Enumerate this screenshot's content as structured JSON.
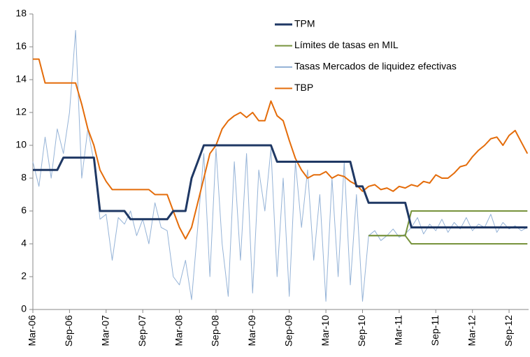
{
  "chart_data": {
    "type": "line",
    "x": [
      "Mar-06",
      "Apr-06",
      "May-06",
      "Jun-06",
      "Jul-06",
      "Aug-06",
      "Sep-06",
      "Oct-06",
      "Nov-06",
      "Dec-06",
      "Jan-07",
      "Feb-07",
      "Mar-07",
      "Apr-07",
      "May-07",
      "Jun-07",
      "Jul-07",
      "Aug-07",
      "Sep-07",
      "Oct-07",
      "Nov-07",
      "Dec-07",
      "Jan-08",
      "Feb-08",
      "Mar-08",
      "Apr-08",
      "May-08",
      "Jun-08",
      "Jul-08",
      "Aug-08",
      "Sep-08",
      "Oct-08",
      "Nov-08",
      "Dec-08",
      "Jan-09",
      "Feb-09",
      "Mar-09",
      "Apr-09",
      "May-09",
      "Jun-09",
      "Jul-09",
      "Aug-09",
      "Sep-09",
      "Oct-09",
      "Nov-09",
      "Dec-09",
      "Jan-10",
      "Feb-10",
      "Mar-10",
      "Apr-10",
      "May-10",
      "Jun-10",
      "Jul-10",
      "Aug-10",
      "Sep-10",
      "Oct-10",
      "Nov-10",
      "Dec-10",
      "Jan-11",
      "Feb-11",
      "Mar-11",
      "Apr-11",
      "May-11",
      "Jun-11",
      "Jul-11",
      "Aug-11",
      "Sep-11",
      "Oct-11",
      "Nov-11",
      "Dec-11",
      "Jan-12",
      "Feb-12",
      "Mar-12",
      "Apr-12",
      "May-12",
      "Jun-12",
      "Jul-12",
      "Aug-12",
      "Sep-12",
      "Oct-12",
      "Nov-12",
      "Dec-12"
    ],
    "series": [
      {
        "name": "TPM",
        "color": "#1f3864",
        "width": 3,
        "values": [
          8.5,
          8.5,
          8.5,
          8.5,
          8.5,
          9.25,
          9.25,
          9.25,
          9.25,
          9.25,
          9.25,
          6,
          6,
          6,
          6,
          6,
          5.5,
          5.5,
          5.5,
          5.5,
          5.5,
          5.5,
          5.5,
          6,
          6,
          6,
          8,
          9,
          10,
          10,
          10,
          10,
          10,
          10,
          10,
          10,
          10,
          10,
          10,
          10,
          9,
          9,
          9,
          9,
          9,
          9,
          9,
          9,
          9,
          9,
          9,
          9,
          9,
          7.5,
          7.5,
          6.5,
          6.5,
          6.5,
          6.5,
          6.5,
          6.5,
          6.5,
          5,
          5,
          5,
          5,
          5,
          5,
          5,
          5,
          5,
          5,
          5,
          5,
          5,
          5,
          5,
          5,
          5,
          5,
          5,
          5
        ]
      },
      {
        "name": "Límites de tasas en MIL",
        "color": "#77933c",
        "width": 2,
        "values": [
          null,
          null,
          null,
          null,
          null,
          null,
          null,
          null,
          null,
          null,
          null,
          null,
          null,
          null,
          null,
          null,
          null,
          null,
          null,
          null,
          null,
          null,
          null,
          null,
          null,
          null,
          null,
          null,
          null,
          null,
          null,
          null,
          null,
          null,
          null,
          null,
          null,
          null,
          null,
          null,
          null,
          null,
          null,
          null,
          null,
          null,
          null,
          null,
          null,
          null,
          null,
          null,
          null,
          null,
          null,
          4.5,
          4.5,
          4.5,
          4.5,
          4.5,
          4.5,
          4.5,
          6,
          6,
          6,
          6,
          6,
          6,
          6,
          6,
          6,
          6,
          6,
          6,
          6,
          6,
          6,
          6,
          6,
          6,
          6,
          6
        ],
        "lower": [
          null,
          null,
          null,
          null,
          null,
          null,
          null,
          null,
          null,
          null,
          null,
          null,
          null,
          null,
          null,
          null,
          null,
          null,
          null,
          null,
          null,
          null,
          null,
          null,
          null,
          null,
          null,
          null,
          null,
          null,
          null,
          null,
          null,
          null,
          null,
          null,
          null,
          null,
          null,
          null,
          null,
          null,
          null,
          null,
          null,
          null,
          null,
          null,
          null,
          null,
          null,
          null,
          null,
          null,
          null,
          4.5,
          4.5,
          4.5,
          4.5,
          4.5,
          4.5,
          4.5,
          4,
          4,
          4,
          4,
          4,
          4,
          4,
          4,
          4,
          4,
          4,
          4,
          4,
          4,
          4,
          4,
          4,
          4,
          4,
          4
        ]
      },
      {
        "name": "Tasas Mercados de liquidez efectivas",
        "color": "#95b3d7",
        "width": 1,
        "values": [
          9,
          7.5,
          10.5,
          8,
          11,
          9.5,
          12,
          17,
          8,
          11,
          9,
          5.5,
          5.8,
          3,
          5.6,
          5.2,
          6,
          4.5,
          5.5,
          4,
          6.5,
          5,
          4.8,
          2,
          1.5,
          3,
          0.6,
          5,
          9.5,
          2,
          9.8,
          4,
          0.8,
          9,
          3,
          9.5,
          1,
          8.5,
          6,
          9.8,
          2,
          8,
          0.8,
          9,
          5,
          8.5,
          3,
          7,
          0.5,
          8,
          2,
          9,
          1.5,
          7,
          0.5,
          4.5,
          4.8,
          4.2,
          4.5,
          4.9,
          4.4,
          4.6,
          5,
          5.6,
          4.6,
          5.2,
          4.8,
          5.5,
          4.7,
          5.3,
          4.9,
          5.6,
          4.8,
          5.2,
          5,
          5.8,
          4.7,
          5.3,
          4.9,
          5.1,
          4.8,
          5
        ]
      },
      {
        "name": "TBP",
        "color": "#e46c0a",
        "width": 2,
        "values": [
          15.25,
          15.25,
          13.8,
          13.8,
          13.8,
          13.8,
          13.8,
          13.8,
          12.5,
          11,
          10,
          8.5,
          7.8,
          7.3,
          7.3,
          7.3,
          7.3,
          7.3,
          7.3,
          7.3,
          7,
          7,
          7,
          6,
          5,
          4.3,
          5,
          6.5,
          8,
          9.5,
          10,
          11,
          11.5,
          11.8,
          12,
          11.7,
          12,
          11.5,
          11.5,
          12.7,
          11.8,
          11.5,
          10.3,
          9.2,
          8.5,
          8,
          8.2,
          8.2,
          8.4,
          8,
          8.2,
          8.1,
          7.8,
          7.6,
          7.2,
          7.5,
          7.6,
          7.3,
          7.4,
          7.2,
          7.5,
          7.4,
          7.6,
          7.5,
          7.8,
          7.7,
          8.2,
          8,
          8,
          8.3,
          8.7,
          8.8,
          9.3,
          9.7,
          10,
          10.4,
          10.5,
          10,
          10.6,
          10.9,
          10.2,
          9.5
        ]
      }
    ],
    "xticks": [
      "Mar-06",
      "Sep-06",
      "Mar-07",
      "Sep-07",
      "Mar-08",
      "Sep-08",
      "Mar-09",
      "Sep-09",
      "Mar-10",
      "Sep-10",
      "Mar-11",
      "Sep-11",
      "Mar-12",
      "Sep-12"
    ],
    "ylim": [
      0,
      18
    ],
    "yticks": [
      0,
      2,
      4,
      6,
      8,
      10,
      12,
      14,
      16,
      18
    ],
    "grid": false,
    "legend": "top"
  }
}
